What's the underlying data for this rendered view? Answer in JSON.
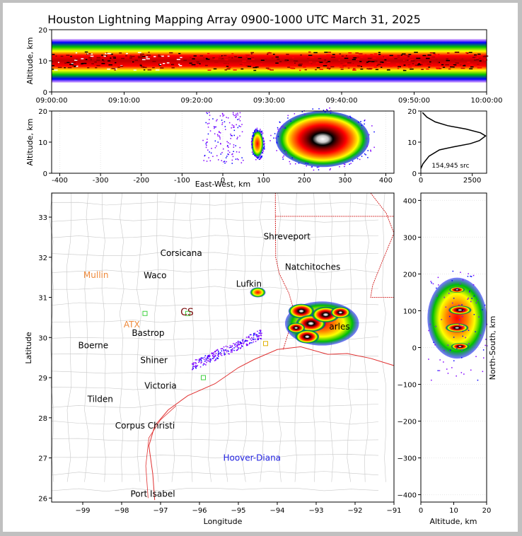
{
  "colors": {
    "background_frame": "#c0c0c0",
    "coast": "#e03030",
    "state_border": "#d01818",
    "county_lines": "#c8c8c8",
    "density_scale": [
      "#8000ff",
      "#0000ff",
      "#00c000",
      "#ffff00",
      "#ff8000",
      "#ff0000",
      "#800000",
      "#000000",
      "#ffffff"
    ],
    "label_orange": "#ee8a3c",
    "label_darkred": "#7a1010",
    "label_blue": "#2020e0",
    "label_green": "#40d040"
  },
  "chart_data": [
    {
      "id": "time-altitude",
      "type": "heatmap",
      "title": "Houston Lightning Mapping Array 0900-1000 UTC March 31, 2025",
      "xlabel": "",
      "ylabel": "Altitude, km",
      "xlim": [
        "09:00:00",
        "10:00:00"
      ],
      "xticks": [
        "09:00:00",
        "09:10:00",
        "09:20:00",
        "09:30:00",
        "09:40:00",
        "09:50:00",
        "10:00:00"
      ],
      "ylim": [
        0,
        20
      ],
      "yticks": [
        0,
        10,
        20
      ],
      "band_altitude_km": [
        3,
        17
      ],
      "core_altitude_km": [
        7,
        13
      ]
    },
    {
      "id": "east-west-altitude",
      "type": "heatmap",
      "xlabel": "East-West, km",
      "ylabel": "Altitude, km",
      "xlim": [
        -420,
        420
      ],
      "xticks": [
        -400,
        -300,
        -200,
        -100,
        0,
        100,
        200,
        300,
        400
      ],
      "ylim": [
        0,
        20
      ],
      "yticks": [
        0,
        10,
        20
      ],
      "clusters": [
        {
          "x_km": [
            -50,
            50
          ],
          "alt_km": [
            3,
            20
          ],
          "intensity": "low"
        },
        {
          "x_km": [
            70,
            100
          ],
          "alt_km": [
            5,
            14
          ],
          "intensity": "medium"
        },
        {
          "x_km": [
            130,
            360
          ],
          "alt_km": [
            2,
            20
          ],
          "intensity": "high"
        }
      ]
    },
    {
      "id": "altitude-histogram",
      "type": "line",
      "xlim": [
        0,
        3200
      ],
      "xticks": [
        0,
        2500
      ],
      "ylim": [
        0,
        20
      ],
      "yticks": [
        0,
        10,
        20
      ],
      "annotation": "154,945 src",
      "points": [
        [
          0,
          1.5
        ],
        [
          100,
          3
        ],
        [
          400,
          5.5
        ],
        [
          900,
          7.5
        ],
        [
          1600,
          8.5
        ],
        [
          2400,
          9.5
        ],
        [
          2850,
          10.5
        ],
        [
          3150,
          12
        ],
        [
          2900,
          13
        ],
        [
          2200,
          14.2
        ],
        [
          1300,
          15.3
        ],
        [
          700,
          16.5
        ],
        [
          300,
          18
        ],
        [
          80,
          19.5
        ]
      ]
    },
    {
      "id": "map",
      "type": "scatter",
      "xlabel": "Longitude",
      "ylabel": "Latitude",
      "xlim": [
        -99.8,
        -91
      ],
      "ylim": [
        25.9,
        33.6
      ],
      "xticks": [
        -99,
        -98,
        -97,
        -96,
        -95,
        -94,
        -93,
        -92,
        -91
      ],
      "yticks": [
        26,
        27,
        28,
        29,
        30,
        31,
        32,
        33
      ],
      "cities": [
        {
          "name": "Shreveport",
          "lon": -93.75,
          "lat": 32.52,
          "color": "#000000"
        },
        {
          "name": "Corsicana",
          "lon": -96.47,
          "lat": 32.1,
          "color": "#000000"
        },
        {
          "name": "Mullin",
          "lon": -98.66,
          "lat": 31.56,
          "color": "#ee8a3c"
        },
        {
          "name": "Waco",
          "lon": -97.14,
          "lat": 31.55,
          "color": "#000000"
        },
        {
          "name": "Natchitoches",
          "lon": -93.09,
          "lat": 31.76,
          "color": "#000000"
        },
        {
          "name": "Lufkin",
          "lon": -94.73,
          "lat": 31.34,
          "color": "#000000"
        },
        {
          "name": "CS",
          "lon": -96.32,
          "lat": 30.62,
          "color": "#7a1010"
        },
        {
          "name": "ATX",
          "lon": -97.74,
          "lat": 30.32,
          "color": "#ee8a3c"
        },
        {
          "name": "Bastrop",
          "lon": -97.32,
          "lat": 30.11,
          "color": "#000000"
        },
        {
          "name": "arles",
          "lon": -92.4,
          "lat": 30.27,
          "color": "#000000"
        },
        {
          "name": "Boerne",
          "lon": -98.73,
          "lat": 29.8,
          "color": "#000000"
        },
        {
          "name": "Shiner",
          "lon": -97.17,
          "lat": 29.43,
          "color": "#000000"
        },
        {
          "name": "Victoria",
          "lon": -97.0,
          "lat": 28.8,
          "color": "#000000"
        },
        {
          "name": "Tilden",
          "lon": -98.55,
          "lat": 28.46,
          "color": "#000000"
        },
        {
          "name": "Corpus Christi",
          "lon": -97.4,
          "lat": 27.8,
          "color": "#000000"
        },
        {
          "name": "Hoover-Diana",
          "lon": -94.65,
          "lat": 27.0,
          "color": "#2020e0"
        },
        {
          "name": "Port Isabel",
          "lon": -97.2,
          "lat": 26.1,
          "color": "#000000"
        }
      ],
      "stations": [
        {
          "lon": -97.4,
          "lat": 30.6,
          "color": "#40d040"
        },
        {
          "lon": -96.3,
          "lat": 30.6,
          "color": "#40d040"
        },
        {
          "lon": -95.9,
          "lat": 29.0,
          "color": "#40d040"
        },
        {
          "lon": -94.3,
          "lat": 29.85,
          "color": "#e0b000"
        }
      ],
      "clusters": [
        {
          "lon": [
            -93.8,
            -91.9
          ],
          "lat": [
            29.8,
            30.9
          ],
          "intensity": "high"
        },
        {
          "lon": [
            -94.7,
            -94.3
          ],
          "lat": [
            31.0,
            31.25
          ],
          "intensity": "medium"
        },
        {
          "lon": [
            -96.2,
            -94.4
          ],
          "lat": [
            29.3,
            30.3
          ],
          "intensity": "low"
        }
      ]
    },
    {
      "id": "altitude-north-south",
      "type": "heatmap",
      "xlabel": "Altitude, km",
      "ylabel": "North-South, km",
      "xlim": [
        0,
        20
      ],
      "xticks": [
        0,
        10,
        20
      ],
      "ylim": [
        -420,
        420
      ],
      "yticks": [
        -400,
        -300,
        -200,
        -100,
        0,
        100,
        200,
        300,
        400
      ],
      "clusters": [
        {
          "alt_km": [
            2,
            20
          ],
          "ns_km": [
            -30,
            190
          ],
          "intensity": "high"
        }
      ]
    }
  ]
}
